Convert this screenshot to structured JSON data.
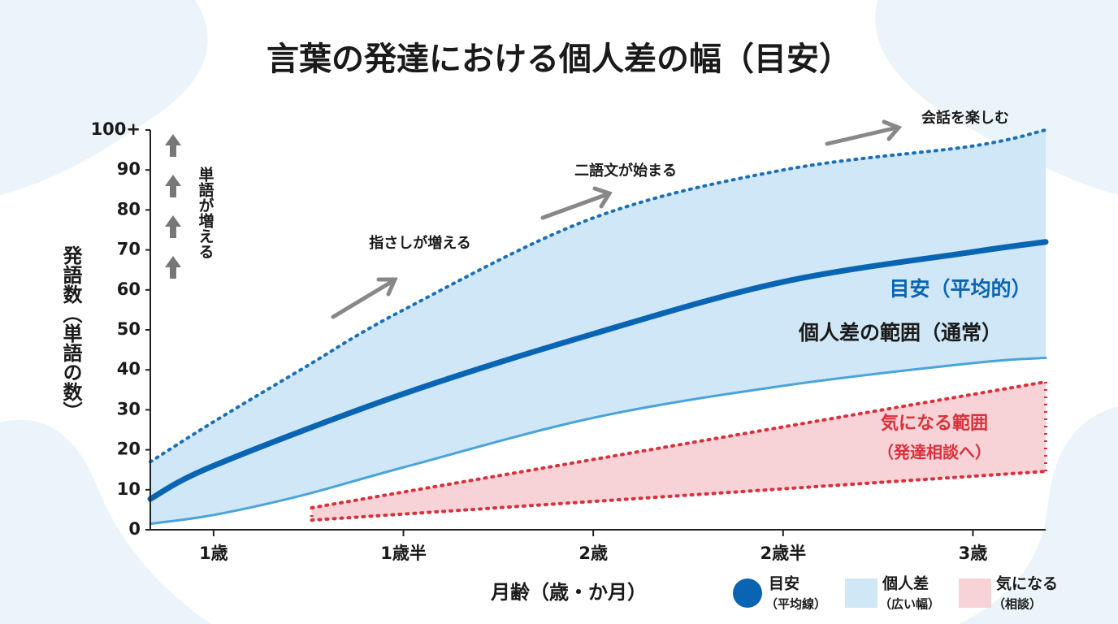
{
  "chart_data": {
    "type": "range",
    "title": "言葉の発達における個人差の幅（目安）",
    "x_label": "月齢（歳・か月）",
    "y_label": "発語数（単語の数）",
    "y_note": "単語が増える",
    "xlim": [
      10,
      38.3
    ],
    "xticks": [
      {
        "value": 12,
        "label": "1歳"
      },
      {
        "value": 18,
        "label": "1歳半"
      },
      {
        "value": 24,
        "label": "2歳"
      },
      {
        "value": 30,
        "label": "2歳半"
      },
      {
        "value": 36,
        "label": "3歳"
      }
    ],
    "ylim": [
      0,
      100
    ],
    "yticks": [
      0,
      10,
      20,
      30,
      40,
      50,
      60,
      70,
      80,
      90,
      {
        "value": 100,
        "label": "100+"
      }
    ],
    "series": [
      {
        "name": "目安",
        "note": "（平均線）",
        "color": "#0a64b4",
        "x": [
          10,
          12,
          18,
          24,
          30,
          36,
          38.3
        ],
        "values": [
          7.7,
          16,
          34,
          49,
          62,
          69.5,
          72
        ]
      },
      {
        "name": "個人差",
        "note": "（広い幅）",
        "color": "#cfe7f6",
        "line_color": "#4aa3da",
        "bound_color": "#1a70b8",
        "x": [
          10,
          12,
          14.75,
          18,
          24,
          30,
          36,
          38.3
        ],
        "upper": [
          17,
          27,
          40,
          55,
          78,
          90,
          96,
          100
        ],
        "lower": [
          1.5,
          3.7,
          8.5,
          15.6,
          28,
          36,
          41.7,
          43
        ]
      },
      {
        "name": "気になる",
        "note": "（相談）",
        "color": "#f7d2d6",
        "line_color": "#d9303c",
        "x": [
          15.1,
          38.3
        ],
        "upper": [
          5.5,
          37
        ],
        "lower": [
          2.4,
          14.6
        ]
      }
    ],
    "annotations": [
      {
        "text": "指さしが増える"
      },
      {
        "text": "二語文が始まる"
      },
      {
        "text": "会話を楽しむ"
      },
      {
        "text": "目安（平均的）"
      },
      {
        "text": "個人差の範囲（通常）"
      },
      {
        "text": "気になる範囲"
      },
      {
        "text": "（発達相談へ）"
      }
    ]
  }
}
